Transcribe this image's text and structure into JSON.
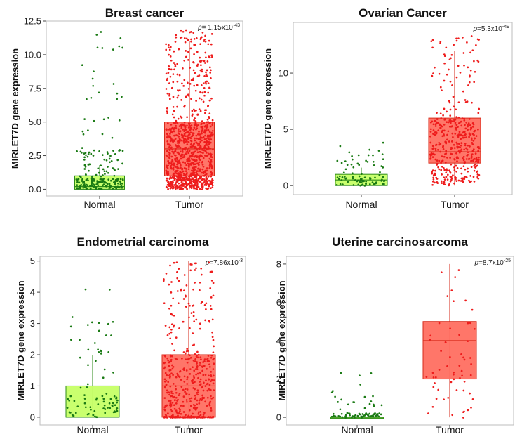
{
  "colors": {
    "normal_box": "#c6ff66",
    "normal_border": "#2e8b1a",
    "normal_points": "#1a7a14",
    "tumor_box": "#ff6f61",
    "tumor_border": "#d62a1a",
    "tumor_points": "#ee1c1c"
  },
  "chart_data": [
    {
      "type": "box",
      "title": "Breast cancer",
      "ylabel": "MIRLET7D gene expression",
      "categories": [
        "Normal",
        "Tumor"
      ],
      "ylim": [
        -0.5,
        12.5
      ],
      "yticks": [
        0.0,
        2.5,
        5.0,
        7.5,
        10.0,
        12.5
      ],
      "ytick_labels": [
        "0.0",
        "2.5",
        "5.0",
        "7.5",
        "10.0",
        "12.5"
      ],
      "p_label": "p",
      "p_value": "= 1.15x10",
      "p_exp": "-43",
      "boxes": [
        {
          "name": "Normal",
          "q1": 0.0,
          "median": 0.2,
          "q3": 1.0,
          "whisker_low": 0.0,
          "whisker_high": 1.8,
          "n_points": 220,
          "max_point": 11.7
        },
        {
          "name": "Tumor",
          "q1": 1.0,
          "median": 3.0,
          "q3": 5.0,
          "whisker_low": 0.0,
          "whisker_high": 11.0,
          "n_points": 1050,
          "max_point": 11.8
        }
      ]
    },
    {
      "type": "box",
      "title": "Ovarian Cancer",
      "ylabel": "MIRLET7D gene expression",
      "categories": [
        "Normal",
        "Tumor"
      ],
      "ylim": [
        -0.8,
        14.5
      ],
      "yticks": [
        0,
        5,
        10
      ],
      "ytick_labels": [
        "0",
        "5",
        "10"
      ],
      "p_label": "p",
      "p_value": "=5.3x10",
      "p_exp": "-49",
      "boxes": [
        {
          "name": "Normal",
          "q1": 0.0,
          "median": 0.5,
          "q3": 1.0,
          "whisker_low": 0.0,
          "whisker_high": 1.6,
          "n_points": 90,
          "max_point": 3.8
        },
        {
          "name": "Tumor",
          "q1": 2.0,
          "median": 3.0,
          "q3": 6.0,
          "whisker_low": 0.0,
          "whisker_high": 12.0,
          "n_points": 420,
          "max_point": 13.3
        }
      ]
    },
    {
      "type": "box",
      "title": "Endometrial carcinoma",
      "ylabel": "MIRLET7D gene expression",
      "categories": [
        "Normal",
        "Tumor"
      ],
      "ylim": [
        -0.25,
        5.15
      ],
      "yticks": [
        0,
        1,
        2,
        3,
        4,
        5
      ],
      "ytick_labels": [
        "0",
        "1",
        "2",
        "3",
        "4",
        "5"
      ],
      "p_label": "p",
      "p_value": "=7.86x10",
      "p_exp": "-3",
      "boxes": [
        {
          "name": "Normal",
          "q1": 0.0,
          "median": 0.0,
          "q3": 1.0,
          "whisker_low": 0.0,
          "whisker_high": 2.0,
          "n_points": 90,
          "max_point": 4.1
        },
        {
          "name": "Tumor",
          "q1": 0.0,
          "median": 1.0,
          "q3": 2.0,
          "whisker_low": 0.0,
          "whisker_high": 5.0,
          "n_points": 520,
          "max_point": 4.95
        }
      ]
    },
    {
      "type": "box",
      "title": "Uterine carcinosarcoma",
      "ylabel": "MIRLET7D gene expression",
      "categories": [
        "Normal",
        "Tumor"
      ],
      "ylim": [
        -0.4,
        8.4
      ],
      "yticks": [
        0,
        2,
        4,
        6,
        8
      ],
      "ytick_labels": [
        "0",
        "2",
        "4",
        "6",
        "8"
      ],
      "p_label": "p",
      "p_value": "=8.7x10",
      "p_exp": "-25",
      "boxes": [
        {
          "name": "Normal",
          "q1": 0.0,
          "median": 0.0,
          "q3": 0.0,
          "whisker_low": 0.0,
          "whisker_high": 0.0,
          "n_points": 80,
          "max_point": 2.3
        },
        {
          "name": "Tumor",
          "q1": 2.0,
          "median": 4.0,
          "q3": 5.0,
          "whisker_low": 0.0,
          "whisker_high": 8.0,
          "n_points": 60,
          "max_point": 7.7
        }
      ]
    }
  ]
}
